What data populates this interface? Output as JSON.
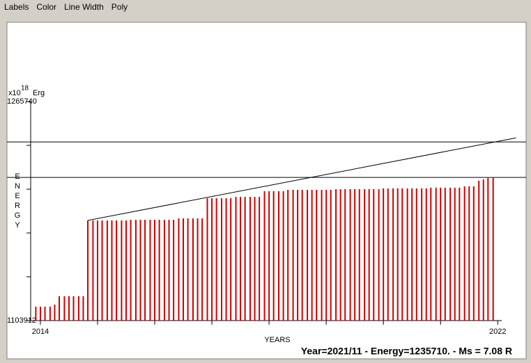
{
  "menu": [
    "Labels",
    "Color",
    "Line Width",
    "Poly"
  ],
  "chart_data": {
    "type": "stem",
    "yunit": {
      "base": "x10",
      "exponent": "18",
      "unit": "Erg"
    },
    "ylabel": "ENERGY",
    "xlabel": "YEARS",
    "color": "#cc0000",
    "xlim": [
      2013.83,
      2022.07
    ],
    "xticks": [
      2014,
      2022
    ],
    "minor_xticks": [
      2015,
      2016,
      2017,
      2018,
      2019,
      2020,
      2021
    ],
    "ylim": [
      1103912,
      1265740
    ],
    "yticks": [
      1103912,
      1265740
    ],
    "minor_yticks": [
      1136278,
      1168643,
      1201009,
      1233374
    ],
    "hlines": [
      1235900,
      1209700
    ],
    "trend": {
      "x": [
        2014.83,
        2022.32
      ],
      "values": [
        1177900,
        1238900
      ]
    },
    "x": [
      2013.92,
      2014.0,
      2014.08,
      2014.17,
      2014.25,
      2014.33,
      2014.42,
      2014.5,
      2014.58,
      2014.67,
      2014.75,
      2014.83,
      2014.92,
      2015.0,
      2015.08,
      2015.17,
      2015.25,
      2015.33,
      2015.42,
      2015.5,
      2015.58,
      2015.67,
      2015.75,
      2015.83,
      2015.92,
      2016.0,
      2016.08,
      2016.17,
      2016.25,
      2016.33,
      2016.42,
      2016.5,
      2016.58,
      2016.67,
      2016.75,
      2016.83,
      2016.92,
      2017.0,
      2017.08,
      2017.17,
      2017.25,
      2017.33,
      2017.42,
      2017.5,
      2017.58,
      2017.67,
      2017.75,
      2017.83,
      2017.92,
      2018.0,
      2018.08,
      2018.17,
      2018.25,
      2018.33,
      2018.42,
      2018.5,
      2018.58,
      2018.67,
      2018.75,
      2018.83,
      2018.92,
      2019.0,
      2019.08,
      2019.17,
      2019.25,
      2019.33,
      2019.42,
      2019.5,
      2019.58,
      2019.67,
      2019.75,
      2019.83,
      2019.92,
      2020.0,
      2020.08,
      2020.17,
      2020.25,
      2020.33,
      2020.42,
      2020.5,
      2020.58,
      2020.67,
      2020.75,
      2020.83,
      2020.92,
      2021.0,
      2021.08,
      2021.17,
      2021.25,
      2021.33,
      2021.42,
      2021.5,
      2021.58,
      2021.67,
      2021.75,
      2021.83,
      2021.92
    ],
    "values": [
      1114200,
      1114200,
      1114200,
      1114200,
      1115700,
      1121900,
      1121900,
      1121900,
      1121900,
      1121900,
      1121900,
      1177900,
      1177900,
      1177900,
      1177900,
      1177900,
      1177900,
      1177900,
      1177900,
      1177900,
      1178400,
      1178400,
      1178400,
      1178400,
      1178400,
      1178400,
      1178400,
      1178400,
      1178400,
      1178400,
      1179400,
      1179400,
      1179400,
      1179400,
      1179400,
      1179400,
      1194300,
      1194300,
      1194300,
      1194300,
      1194300,
      1194300,
      1195300,
      1195300,
      1195300,
      1195300,
      1195300,
      1195300,
      1199500,
      1199500,
      1199500,
      1199500,
      1199500,
      1200500,
      1200500,
      1200500,
      1200500,
      1200500,
      1200500,
      1200500,
      1200500,
      1200500,
      1200500,
      1201000,
      1201000,
      1201000,
      1201000,
      1201000,
      1201000,
      1201000,
      1201000,
      1201000,
      1201000,
      1201600,
      1201600,
      1201600,
      1201600,
      1201600,
      1201600,
      1201600,
      1201600,
      1201600,
      1201600,
      1202100,
      1202100,
      1202100,
      1202100,
      1202100,
      1202100,
      1202100,
      1203100,
      1203100,
      1203100,
      1207200,
      1208200,
      1209200,
      1209700
    ]
  },
  "status": "Year=2021/11 - Energy=1235710. - Ms = 7.08 R"
}
